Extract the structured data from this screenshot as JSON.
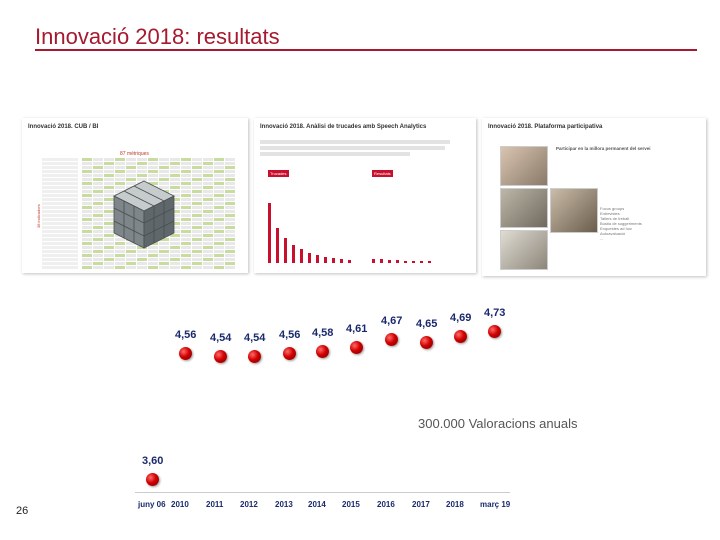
{
  "slide": {
    "title": "Innovació 2018: resultats",
    "page_number": "26",
    "accent_color": "#a6192e"
  },
  "thumbnails": [
    {
      "title": "Innovació 2018. CUB / BI",
      "subtitle": "87 mètriques",
      "side_label": "38 indicadors"
    },
    {
      "title": "Innovació 2018. Anàlisi de trucades amb Speech Analytics",
      "tag_left": "Trucades",
      "tag_right": "Resultats"
    },
    {
      "title": "Innovació 2018. Plataforma participativa",
      "heading": "Participar en la millora permanent del servei",
      "bullets": [
        "Focus groups",
        "Entrevistes",
        "Tallers de treball",
        "Bústia de suggeriments",
        "Enquestes ad hoc",
        "Autoavaluació",
        "..."
      ]
    }
  ],
  "annual_ratings": "300.000 Valoracions anuals",
  "chart_data": {
    "type": "scatter",
    "categories": [
      "juny 06",
      "2010",
      "2011",
      "2012",
      "2013",
      "2014",
      "2015",
      "2016",
      "2017",
      "2018",
      "març 19"
    ],
    "values": [
      3.6,
      4.56,
      4.54,
      4.54,
      4.56,
      4.58,
      4.61,
      4.67,
      4.65,
      4.69,
      4.73
    ],
    "labels": [
      "3,60",
      "4,56",
      "4,54",
      "4,54",
      "4,56",
      "4,58",
      "4,61",
      "4,67",
      "4,65",
      "4,69",
      "4,73"
    ],
    "point_color": "#d10000",
    "label_color": "#1a2a6c",
    "grid": false,
    "title": "",
    "xlabel": "",
    "ylabel": ""
  }
}
